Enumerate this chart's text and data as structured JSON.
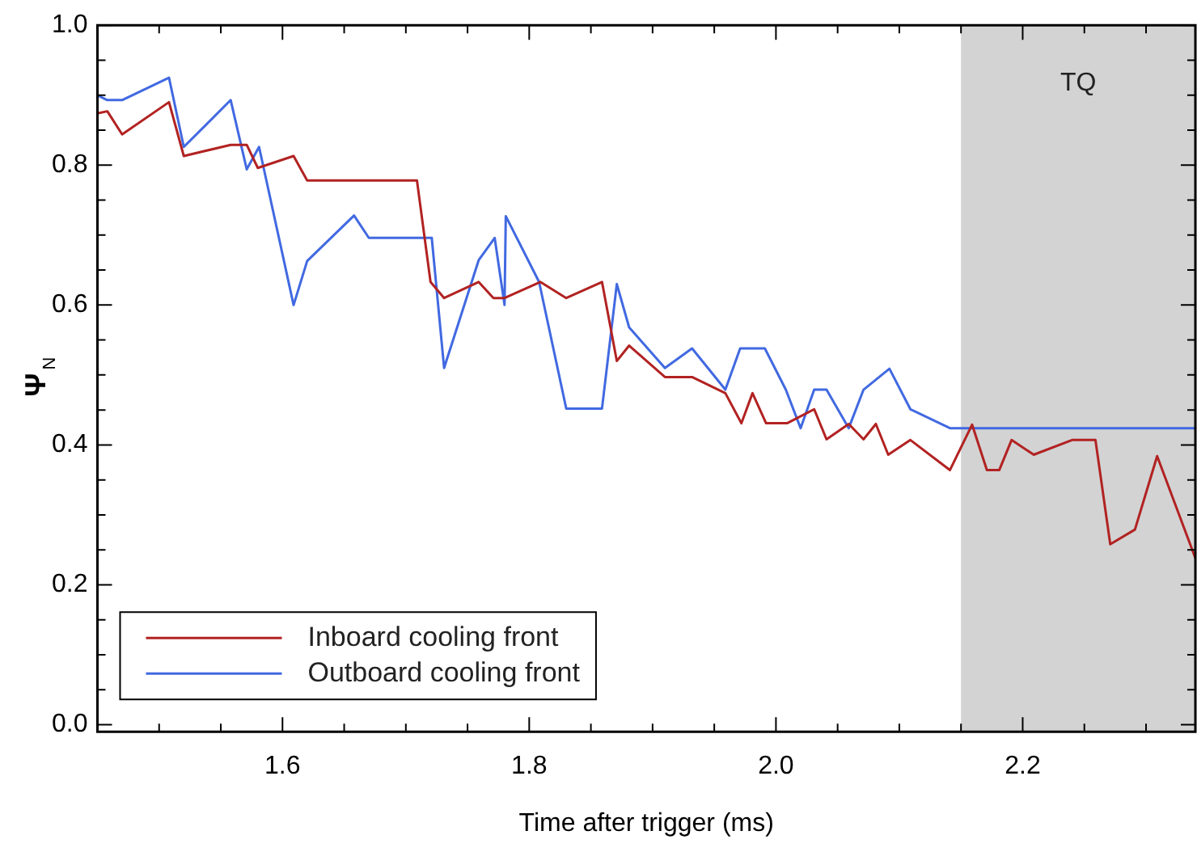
{
  "chart_data": {
    "type": "line",
    "xlabel": "Time after trigger (ms)",
    "ylabel": "Ψ$_{N}$",
    "xlim": [
      1.45,
      2.34
    ],
    "ylim": [
      -0.01,
      1.0
    ],
    "xticks": [
      {
        "value": 1.5,
        "label": null
      },
      {
        "value": 1.55,
        "label": null
      },
      {
        "value": 1.6,
        "label": "1.6"
      },
      {
        "value": 1.65,
        "label": null
      },
      {
        "value": 1.7,
        "label": null
      },
      {
        "value": 1.75,
        "label": null
      },
      {
        "value": 1.8,
        "label": "1.8"
      },
      {
        "value": 1.85,
        "label": null
      },
      {
        "value": 1.9,
        "label": null
      },
      {
        "value": 1.95,
        "label": null
      },
      {
        "value": 2.0,
        "label": "2.0"
      },
      {
        "value": 2.05,
        "label": null
      },
      {
        "value": 2.1,
        "label": null
      },
      {
        "value": 2.15,
        "label": null
      },
      {
        "value": 2.2,
        "label": "2.2"
      },
      {
        "value": 2.25,
        "label": null
      },
      {
        "value": 2.3,
        "label": null
      }
    ],
    "yticks": [
      {
        "value": 0,
        "label": "0.0"
      },
      {
        "value": 0.05,
        "label": null
      },
      {
        "value": 0.1,
        "label": null
      },
      {
        "value": 0.15,
        "label": null
      },
      {
        "value": 0.2,
        "label": "0.2"
      },
      {
        "value": 0.25,
        "label": null
      },
      {
        "value": 0.3,
        "label": null
      },
      {
        "value": 0.35,
        "label": null
      },
      {
        "value": 0.4,
        "label": "0.4"
      },
      {
        "value": 0.45,
        "label": null
      },
      {
        "value": 0.5,
        "label": null
      },
      {
        "value": 0.55,
        "label": null
      },
      {
        "value": 0.6,
        "label": "0.6"
      },
      {
        "value": 0.65,
        "label": null
      },
      {
        "value": 0.7,
        "label": null
      },
      {
        "value": 0.75,
        "label": null
      },
      {
        "value": 0.8,
        "label": "0.8"
      },
      {
        "value": 0.85,
        "label": null
      },
      {
        "value": 0.9,
        "label": null
      },
      {
        "value": 0.95,
        "label": null
      },
      {
        "value": 1.0,
        "label": "1.0"
      }
    ],
    "grid": false,
    "legend": "bottom left",
    "marker": "none",
    "line_style": "solid",
    "bands": [
      {
        "axis": "x",
        "from": 2.15,
        "to": 2.34,
        "label": "TQ",
        "color": "#d3d3d3"
      }
    ],
    "series": [
      {
        "name": "Inboard cooling front",
        "color": "#b22222",
        "x": [
          1.45,
          1.458,
          1.47,
          1.508,
          1.52,
          1.558,
          1.571,
          1.58,
          1.609,
          1.62,
          1.709,
          1.72,
          1.731,
          1.759,
          1.771,
          1.78,
          1.809,
          1.83,
          1.859,
          1.871,
          1.881,
          1.91,
          1.932,
          1.959,
          1.972,
          1.981,
          1.992,
          2.009,
          2.031,
          2.041,
          2.059,
          2.071,
          2.081,
          2.091,
          2.109,
          2.141,
          2.159,
          2.171,
          2.181,
          2.191,
          2.209,
          2.24,
          2.259,
          2.271,
          2.291,
          2.309,
          2.34
        ],
        "values": [
          0.874,
          0.877,
          0.844,
          0.89,
          0.813,
          0.829,
          0.829,
          0.796,
          0.813,
          0.778,
          0.778,
          0.633,
          0.61,
          0.633,
          0.61,
          0.61,
          0.633,
          0.61,
          0.633,
          0.52,
          0.542,
          0.497,
          0.497,
          0.474,
          0.431,
          0.474,
          0.431,
          0.431,
          0.451,
          0.408,
          0.43,
          0.408,
          0.43,
          0.386,
          0.407,
          0.364,
          0.429,
          0.364,
          0.364,
          0.407,
          0.386,
          0.407,
          0.407,
          0.258,
          0.279,
          0.384,
          0.238
        ]
      },
      {
        "name": "Outboard cooling front",
        "color": "#4169e1",
        "x": [
          1.45,
          1.458,
          1.47,
          1.508,
          1.52,
          1.558,
          1.571,
          1.581,
          1.609,
          1.62,
          1.658,
          1.67,
          1.721,
          1.731,
          1.759,
          1.772,
          1.78,
          1.781,
          1.808,
          1.83,
          1.859,
          1.871,
          1.881,
          1.91,
          1.932,
          1.959,
          1.971,
          1.991,
          2.008,
          2.02,
          2.031,
          2.041,
          2.059,
          2.071,
          2.092,
          2.109,
          2.141,
          2.158,
          2.34
        ],
        "values": [
          0.9,
          0.893,
          0.893,
          0.925,
          0.826,
          0.893,
          0.794,
          0.826,
          0.6,
          0.663,
          0.728,
          0.696,
          0.696,
          0.51,
          0.664,
          0.696,
          0.6,
          0.727,
          0.633,
          0.452,
          0.452,
          0.63,
          0.568,
          0.51,
          0.538,
          0.479,
          0.538,
          0.538,
          0.479,
          0.424,
          0.479,
          0.479,
          0.424,
          0.479,
          0.509,
          0.451,
          0.424,
          0.424,
          0.424
        ]
      }
    ]
  }
}
